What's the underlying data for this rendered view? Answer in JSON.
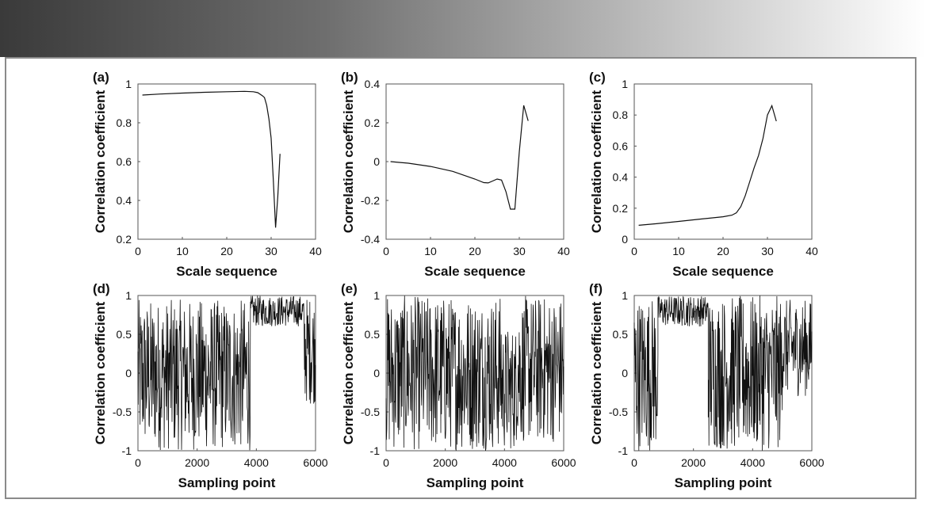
{
  "chart_data": [
    {
      "panel": "(a)",
      "type": "line",
      "xlabel": "Scale sequence",
      "ylabel": "Correlation coefficient",
      "xlim": [
        0,
        40
      ],
      "ylim": [
        0.2,
        1
      ],
      "xticks": [
        0,
        10,
        20,
        30,
        40
      ],
      "xtick_labels": [
        "0",
        "10",
        "20",
        "30",
        "40"
      ],
      "yticks": [
        0.2,
        0.4,
        0.6,
        0.8,
        1
      ],
      "ytick_labels": [
        "0.2",
        "0.4",
        "0.6",
        "0.8",
        "1"
      ],
      "x": [
        1,
        5,
        10,
        15,
        20,
        24,
        26,
        27,
        28,
        28.5,
        29,
        29.5,
        30,
        30.5,
        31,
        31.5,
        32
      ],
      "y": [
        0.943,
        0.948,
        0.953,
        0.957,
        0.96,
        0.962,
        0.96,
        0.955,
        0.94,
        0.93,
        0.89,
        0.82,
        0.72,
        0.5,
        0.26,
        0.42,
        0.64
      ]
    },
    {
      "panel": "(b)",
      "type": "line",
      "xlabel": "Scale sequence",
      "ylabel": "Correlation coefficient",
      "xlim": [
        0,
        40
      ],
      "ylim": [
        -0.4,
        0.4
      ],
      "xticks": [
        0,
        10,
        20,
        30,
        40
      ],
      "xtick_labels": [
        "0",
        "10",
        "20",
        "30",
        "40"
      ],
      "yticks": [
        -0.4,
        -0.2,
        0,
        0.2,
        0.4
      ],
      "ytick_labels": [
        "-0.4",
        "-0.2",
        "0",
        "0.2",
        "0.4"
      ],
      "x": [
        1,
        5,
        10,
        15,
        20,
        22,
        23,
        24,
        25,
        26,
        27,
        28,
        29,
        30,
        31,
        32
      ],
      "y": [
        0,
        -0.008,
        -0.025,
        -0.05,
        -0.09,
        -0.108,
        -0.11,
        -0.1,
        -0.09,
        -0.095,
        -0.155,
        -0.245,
        -0.245,
        0.05,
        0.29,
        0.21
      ]
    },
    {
      "panel": "(c)",
      "type": "line",
      "xlabel": "Scale sequence",
      "ylabel": "Correlation coefficient",
      "xlim": [
        0,
        40
      ],
      "ylim": [
        0,
        1
      ],
      "xticks": [
        0,
        10,
        20,
        30,
        40
      ],
      "xtick_labels": [
        "0",
        "10",
        "20",
        "30",
        "40"
      ],
      "yticks": [
        0,
        0.2,
        0.4,
        0.6,
        0.8,
        1
      ],
      "ytick_labels": [
        "0",
        "0.2",
        "0.4",
        "0.6",
        "0.8",
        "1"
      ],
      "x": [
        1,
        5,
        10,
        15,
        20,
        22,
        23,
        24,
        25,
        26,
        27,
        28,
        29,
        30,
        31,
        32
      ],
      "y": [
        0.09,
        0.1,
        0.115,
        0.13,
        0.145,
        0.155,
        0.17,
        0.21,
        0.28,
        0.37,
        0.46,
        0.54,
        0.65,
        0.8,
        0.86,
        0.76
      ]
    },
    {
      "panel": "(d)",
      "type": "line",
      "style": "noisy",
      "xlabel": "Sampling point",
      "ylabel": "Correlation coefficient",
      "xlim": [
        0,
        6000
      ],
      "ylim": [
        -1,
        1
      ],
      "xticks": [
        0,
        2000,
        4000,
        6000
      ],
      "xtick_labels": [
        "0",
        "2000",
        "4000",
        "6000"
      ],
      "yticks": [
        -1,
        -0.5,
        0,
        0.5,
        1
      ],
      "ytick_labels": [
        "-1",
        "-0.5",
        "0",
        "0.5",
        "1"
      ],
      "segments": [
        {
          "x": [
            0,
            3800
          ],
          "range": [
            -1,
            0.95
          ]
        },
        {
          "x": [
            3800,
            5600
          ],
          "range": [
            0.6,
            1
          ]
        },
        {
          "x": [
            5600,
            6000
          ],
          "range": [
            -0.4,
            1
          ]
        }
      ]
    },
    {
      "panel": "(e)",
      "type": "line",
      "style": "noisy",
      "xlabel": "Sampling point",
      "ylabel": "Correlation coefficient",
      "xlim": [
        0,
        6000
      ],
      "ylim": [
        -1,
        1
      ],
      "xticks": [
        0,
        2000,
        4000,
        6000
      ],
      "xtick_labels": [
        "0",
        "2000",
        "4000",
        "6000"
      ],
      "yticks": [
        -1,
        -0.5,
        0,
        0.5,
        1
      ],
      "ytick_labels": [
        "-1",
        "-0.5",
        "0",
        "0.5",
        "1"
      ],
      "segments": [
        {
          "x": [
            0,
            3900
          ],
          "range": [
            -1,
            1
          ]
        },
        {
          "x": [
            3900,
            4400
          ],
          "range": [
            -1,
            0.6
          ]
        },
        {
          "x": [
            4400,
            6000
          ],
          "range": [
            -0.9,
            1
          ]
        }
      ]
    },
    {
      "panel": "(f)",
      "type": "line",
      "style": "noisy",
      "xlabel": "Sampling point",
      "ylabel": "Correlation coefficient",
      "xlim": [
        0,
        6000
      ],
      "ylim": [
        -1,
        1
      ],
      "xticks": [
        0,
        2000,
        4000,
        6000
      ],
      "xtick_labels": [
        "0",
        "2000",
        "4000",
        "6000"
      ],
      "yticks": [
        -1,
        -0.5,
        0,
        0.5,
        1
      ],
      "ytick_labels": [
        "-1",
        "-0.5",
        "0",
        "0.5",
        "1"
      ],
      "segments": [
        {
          "x": [
            0,
            800
          ],
          "range": [
            -1,
            1
          ]
        },
        {
          "x": [
            800,
            2500
          ],
          "range": [
            0.6,
            1
          ]
        },
        {
          "x": [
            2500,
            5000
          ],
          "range": [
            -1,
            1
          ]
        },
        {
          "x": [
            5000,
            6000
          ],
          "range": [
            -0.3,
            0.95
          ]
        }
      ]
    }
  ]
}
